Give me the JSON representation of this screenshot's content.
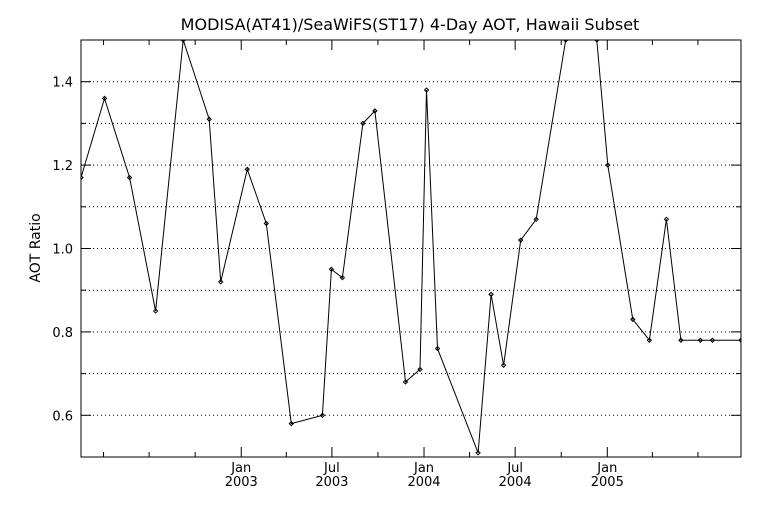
{
  "chart_data": {
    "type": "line",
    "title": "MODISA(AT41)/SeaWiFS(ST17) 4-Day AOT, Hawaii Subset",
    "xlabel": "",
    "ylabel": "AOT Ratio",
    "x_axis_type": "date",
    "xlim": [
      "2002-02-15",
      "2005-09-25"
    ],
    "ylim": [
      0.5,
      1.5
    ],
    "yticks": [
      0.6,
      0.8,
      1.0,
      1.2,
      1.4
    ],
    "ytick_labels": [
      "0.6",
      "0.8",
      "1.0",
      "1.2",
      "1.4"
    ],
    "y_minor_step": 0.1,
    "grid": "dotted horizontal lines every 0.1",
    "xticks": [
      {
        "date": "2003-01-01",
        "month": "Jan",
        "year": "2003"
      },
      {
        "date": "2003-07-01",
        "month": "Jul",
        "year": "2003"
      },
      {
        "date": "2004-01-01",
        "month": "Jan",
        "year": "2004"
      },
      {
        "date": "2004-07-01",
        "month": "Jul",
        "year": "2004"
      },
      {
        "date": "2005-01-01",
        "month": "Jan",
        "year": "2005"
      }
    ],
    "series": [
      {
        "x": [
          "2002-02-15",
          "2002-04-03",
          "2002-05-23",
          "2002-07-14",
          "2002-09-07",
          "2002-10-29",
          "2002-11-21",
          "2003-01-13",
          "2003-02-20",
          "2003-04-11",
          "2003-06-12",
          "2003-06-30",
          "2003-07-22",
          "2003-09-01",
          "2003-09-25",
          "2003-11-25",
          "2003-12-24",
          "2004-01-06",
          "2004-01-28",
          "2004-04-18",
          "2004-05-14",
          "2004-06-08",
          "2004-07-12",
          "2004-08-12",
          "2004-10-10",
          "2004-12-11",
          "2005-01-02",
          "2005-02-21",
          "2005-03-26",
          "2005-04-29",
          "2005-05-28",
          "2005-07-06",
          "2005-07-30",
          "2005-09-25"
        ],
        "y": [
          1.17,
          1.36,
          1.17,
          0.85,
          1.5,
          1.31,
          0.92,
          1.19,
          1.06,
          0.58,
          0.6,
          0.95,
          0.93,
          1.3,
          1.33,
          0.68,
          0.71,
          1.38,
          0.76,
          0.51,
          0.89,
          0.72,
          1.02,
          1.07,
          1.5,
          1.5,
          1.2,
          0.83,
          0.78,
          1.07,
          0.78,
          0.78,
          0.78,
          0.78
        ]
      }
    ]
  }
}
